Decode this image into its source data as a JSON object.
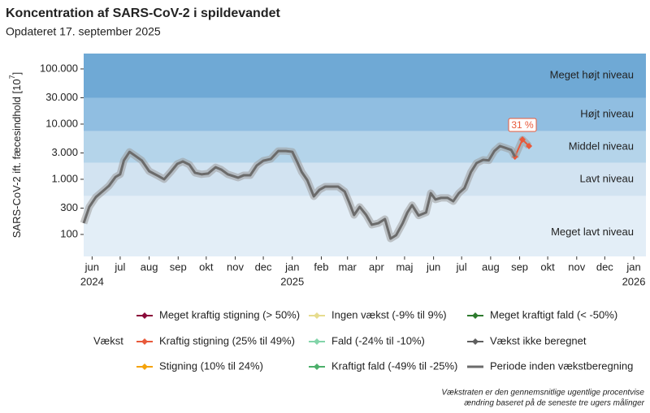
{
  "chart_data": {
    "type": "line",
    "title": "Koncentration af SARS-CoV-2 i spildevandet",
    "subtitle": "Opdateret 17. september 2025",
    "ylabel": {
      "text": "SARS-CoV-2 ift. fæcesindhold [10",
      "sup": "7",
      "end": "]"
    },
    "log_y": true,
    "ylim": [
      40,
      190000
    ],
    "yticks": [
      100,
      300,
      {
        "value": 1000,
        "label": "1.000"
      },
      {
        "value": 3000,
        "label": "3.000"
      },
      {
        "value": 10000,
        "label": "10.000"
      },
      {
        "value": 30000,
        "label": "30.000"
      },
      {
        "value": 100000,
        "label": "100.000"
      }
    ],
    "xlim": [
      "2024-05-23",
      "2026-01-14"
    ],
    "xticks": [
      {
        "value": "2024-06",
        "label": "jun"
      },
      {
        "value": "2024-07",
        "label": "jul"
      },
      {
        "value": "2024-08",
        "label": "aug"
      },
      {
        "value": "2024-09",
        "label": "sep"
      },
      {
        "value": "2024-10",
        "label": "okt"
      },
      {
        "value": "2024-11",
        "label": "nov"
      },
      {
        "value": "2024-12",
        "label": "dec"
      },
      {
        "value": "2025-01",
        "label": "jan"
      },
      {
        "value": "2025-02",
        "label": "feb"
      },
      {
        "value": "2025-03",
        "label": "mar"
      },
      {
        "value": "2025-04",
        "label": "apr"
      },
      {
        "value": "2025-05",
        "label": "maj"
      },
      {
        "value": "2025-06",
        "label": "jun"
      },
      {
        "value": "2025-07",
        "label": "jul"
      },
      {
        "value": "2025-08",
        "label": "aug"
      },
      {
        "value": "2025-09",
        "label": "sep"
      },
      {
        "value": "2025-10",
        "label": "okt"
      },
      {
        "value": "2025-11",
        "label": "nov"
      },
      {
        "value": "2025-12",
        "label": "dec"
      },
      {
        "value": "2026-01",
        "label": "jan"
      }
    ],
    "x_year_labels": [
      {
        "value": "2024-06",
        "label": "2024"
      },
      {
        "value": "2025-01",
        "label": "2025"
      },
      {
        "value": "2026-01",
        "label": "2026"
      }
    ],
    "bands": [
      {
        "label": "Meget lavt niveau",
        "from": 40,
        "to": 500,
        "color": "#e3eef7"
      },
      {
        "label": "Lavt niveau",
        "from": 500,
        "to": 2000,
        "color": "#d2e3f1"
      },
      {
        "label": "Middel niveau",
        "from": 2000,
        "to": 7500,
        "color": "#b4d4ea"
      },
      {
        "label": "Højt niveau",
        "from": 7500,
        "to": 30000,
        "color": "#90bee1"
      },
      {
        "label": "Meget højt niveau",
        "from": 30000,
        "to": 190000,
        "color": "#6fa9d5"
      }
    ],
    "x": [
      "2024-05-23",
      "2024-05-29",
      "2024-06-05",
      "2024-06-12",
      "2024-06-19",
      "2024-06-26",
      "2024-07-01",
      "2024-07-05",
      "2024-07-11",
      "2024-07-17",
      "2024-07-24",
      "2024-08-01",
      "2024-08-11",
      "2024-08-17",
      "2024-08-24",
      "2024-08-31",
      "2024-09-06",
      "2024-09-13",
      "2024-09-19",
      "2024-09-26",
      "2024-10-03",
      "2024-10-11",
      "2024-10-17",
      "2024-10-24",
      "2024-11-04",
      "2024-11-10",
      "2024-11-17",
      "2024-11-24",
      "2024-12-01",
      "2024-12-09",
      "2024-12-17",
      "2024-12-25",
      "2025-01-01",
      "2025-01-06",
      "2025-01-11",
      "2025-01-17",
      "2025-01-24",
      "2025-01-30",
      "2025-02-05",
      "2025-02-12",
      "2025-02-19",
      "2025-02-26",
      "2025-03-03",
      "2025-03-08",
      "2025-03-14",
      "2025-03-21",
      "2025-03-27",
      "2025-04-03",
      "2025-04-10",
      "2025-04-16",
      "2025-04-22",
      "2025-04-29",
      "2025-05-04",
      "2025-05-09",
      "2025-05-16",
      "2025-05-24",
      "2025-05-29",
      "2025-06-03",
      "2025-06-09",
      "2025-06-16",
      "2025-06-22",
      "2025-06-28",
      "2025-07-04",
      "2025-07-11",
      "2025-07-17",
      "2025-07-24",
      "2025-07-30",
      "2025-08-05",
      "2025-08-11",
      "2025-08-17",
      "2025-08-23",
      "2025-08-27",
      "2025-09-04",
      "2025-09-11"
    ],
    "legend_title": "Vækst",
    "series": [
      {
        "name": "Meget kraftig stigning (> 50%)",
        "color": "#8b0a3a",
        "marker": true
      },
      {
        "name": "Kraftig stigning (25% til 49%)",
        "color": "#e8593a",
        "marker": true,
        "values": [
          null,
          null,
          null,
          null,
          null,
          null,
          null,
          null,
          null,
          null,
          null,
          null,
          null,
          null,
          null,
          null,
          null,
          null,
          null,
          null,
          null,
          null,
          null,
          null,
          null,
          null,
          null,
          null,
          null,
          null,
          null,
          null,
          null,
          null,
          null,
          null,
          null,
          null,
          null,
          null,
          null,
          null,
          null,
          null,
          null,
          null,
          null,
          null,
          null,
          null,
          null,
          null,
          null,
          null,
          null,
          null,
          null,
          null,
          null,
          null,
          null,
          null,
          null,
          null,
          null,
          null,
          null,
          null,
          null,
          null,
          null,
          2570,
          5250,
          4000
        ],
        "value_labels": [
          null,
          null,
          null,
          null,
          null,
          null,
          null,
          null,
          null,
          null,
          null,
          null,
          null,
          null,
          null,
          null,
          null,
          null,
          null,
          null,
          null,
          null,
          null,
          null,
          null,
          null,
          null,
          null,
          null,
          null,
          null,
          null,
          null,
          null,
          null,
          null,
          null,
          null,
          null,
          null,
          null,
          null,
          null,
          null,
          null,
          null,
          null,
          null,
          null,
          null,
          null,
          null,
          null,
          null,
          null,
          null,
          null,
          null,
          null,
          null,
          null,
          null,
          null,
          null,
          null,
          null,
          null,
          null,
          null,
          null,
          null,
          null,
          "31 %",
          null
        ]
      },
      {
        "name": "Stigning (10% til 24%)",
        "color": "#f5a30a",
        "marker": true
      },
      {
        "name": "Ingen vækst (-9% til 9%)",
        "color": "#e6dc8e",
        "marker": true
      },
      {
        "name": "Fald (-24% til -10%)",
        "color": "#82d4a9",
        "marker": true
      },
      {
        "name": "Kraftigt fald (-49% til -25%)",
        "color": "#4caf6a",
        "marker": true
      },
      {
        "name": "Meget kraftigt fald (< -50%)",
        "color": "#2d7a2d",
        "marker": true
      },
      {
        "name": "Vækst ikke beregnet",
        "color": "#5f5f5f",
        "marker": true
      },
      {
        "name": "Periode inden vækstberegning",
        "color": "#6b6b6b",
        "marker": false,
        "values": [
          160,
          316,
          475,
          600,
          760,
          1100,
          1230,
          2200,
          3140,
          2670,
          2200,
          1400,
          1140,
          1000,
          1360,
          1900,
          2100,
          1840,
          1310,
          1230,
          1270,
          1650,
          1500,
          1230,
          1070,
          1180,
          1180,
          1780,
          2170,
          2330,
          3250,
          3250,
          3150,
          2100,
          1360,
          965,
          490,
          645,
          735,
          735,
          735,
          600,
          375,
          225,
          316,
          225,
          150,
          160,
          190,
          84,
          97,
          160,
          250,
          340,
          220,
          250,
          560,
          430,
          460,
          460,
          400,
          560,
          690,
          1360,
          1970,
          2250,
          2200,
          3250,
          4000,
          3700,
          3400,
          2570,
          null,
          null
        ]
      }
    ],
    "footnote": [
      "Vækstraten er den gennemsnitlige ugentlige procentvise",
      "ændring baseret på de seneste tre ugers målinger"
    ]
  }
}
